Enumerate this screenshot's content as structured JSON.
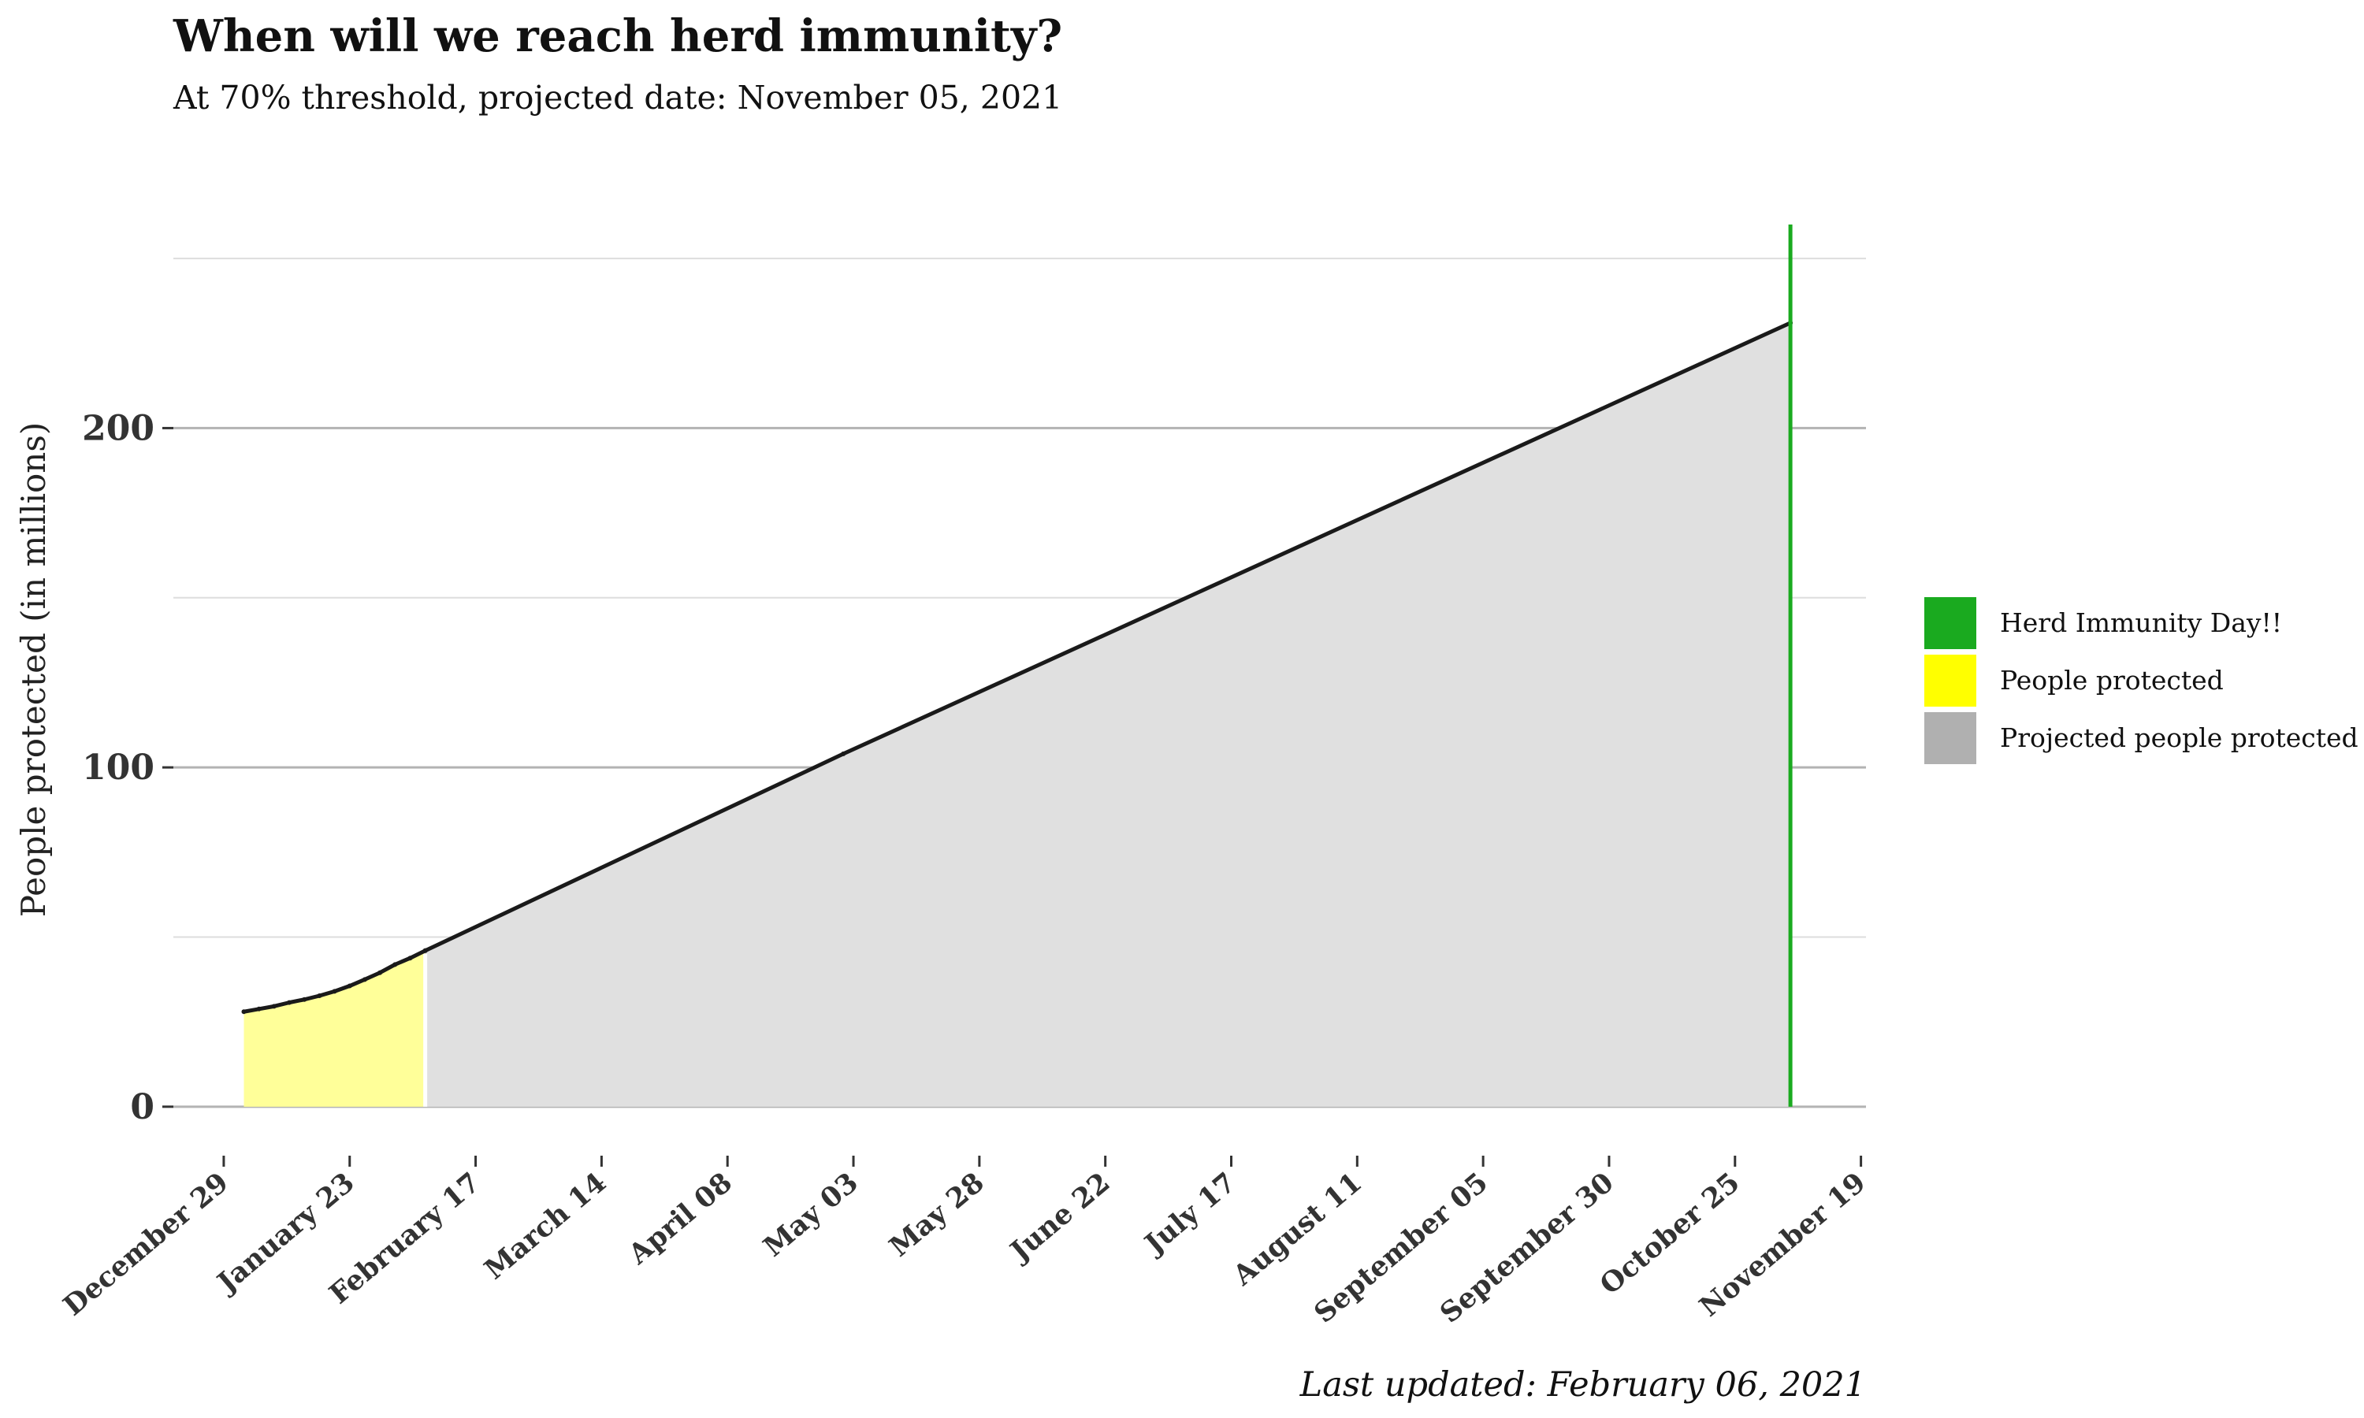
{
  "chart_data": {
    "type": "area",
    "title": "When will we reach herd immunity?",
    "subtitle": "At 70% threshold, projected date: November 05, 2021",
    "ylabel": "People protected (in millions)",
    "xlabel": "",
    "caption": "Last updated: February 06, 2021",
    "x_axis": {
      "type": "date",
      "range": [
        "2020-12-19",
        "2021-11-20"
      ],
      "ticks": [
        {
          "date": "2020-12-29",
          "label": "December 29"
        },
        {
          "date": "2021-01-23",
          "label": "January 23"
        },
        {
          "date": "2021-02-17",
          "label": "February 17"
        },
        {
          "date": "2021-03-14",
          "label": "March 14"
        },
        {
          "date": "2021-04-08",
          "label": "April 08"
        },
        {
          "date": "2021-05-03",
          "label": "May 03"
        },
        {
          "date": "2021-05-28",
          "label": "May 28"
        },
        {
          "date": "2021-06-22",
          "label": "June 22"
        },
        {
          "date": "2021-07-17",
          "label": "July 17"
        },
        {
          "date": "2021-08-11",
          "label": "August 11"
        },
        {
          "date": "2021-09-05",
          "label": "September 05"
        },
        {
          "date": "2021-09-30",
          "label": "September 30"
        },
        {
          "date": "2021-10-25",
          "label": "October 25"
        },
        {
          "date": "2021-11-19",
          "label": "November 19"
        }
      ]
    },
    "y_axis": {
      "range": [
        -7,
        260
      ],
      "major_ticks": [
        0,
        100,
        200
      ],
      "minor_gridlines": [
        50,
        150,
        250
      ]
    },
    "grid": true,
    "legend": {
      "position": "right",
      "items": [
        {
          "label": "Herd Immunity Day!!",
          "color": "#1aaa1f"
        },
        {
          "label": "People protected",
          "color": "#ffff00"
        },
        {
          "label": "Projected people protected",
          "color": "#b0b0b0"
        }
      ]
    },
    "series": [
      {
        "name": "People protected",
        "kind": "area",
        "fill": "#ffff99",
        "points": [
          {
            "x": "2021-01-02",
            "y": 28.0
          },
          {
            "x": "2021-01-05",
            "y": 28.8
          },
          {
            "x": "2021-01-08",
            "y": 29.6
          },
          {
            "x": "2021-01-11",
            "y": 30.7
          },
          {
            "x": "2021-01-14",
            "y": 31.6
          },
          {
            "x": "2021-01-17",
            "y": 32.7
          },
          {
            "x": "2021-01-20",
            "y": 34.0
          },
          {
            "x": "2021-01-23",
            "y": 35.6
          },
          {
            "x": "2021-01-26",
            "y": 37.5
          },
          {
            "x": "2021-01-29",
            "y": 39.5
          },
          {
            "x": "2021-02-01",
            "y": 41.9
          },
          {
            "x": "2021-02-04",
            "y": 43.8
          },
          {
            "x": "2021-02-07",
            "y": 46.0
          }
        ]
      },
      {
        "name": "Projected people protected",
        "kind": "area",
        "fill": "#e0e0e0",
        "points": [
          {
            "x": "2021-02-07",
            "y": 46.0
          },
          {
            "x": "2021-05-01",
            "y": 104.0
          },
          {
            "x": "2021-11-05",
            "y": 231.0
          }
        ]
      }
    ],
    "annotations": [
      {
        "type": "vline",
        "x": "2021-11-05",
        "label": "Herd Immunity Day!!",
        "color": "#1aaa1f"
      }
    ],
    "colors": {
      "yellow_fill": "#ffff99",
      "gray_fill": "#e0e0e0",
      "line": "#1a1a1a",
      "vline": "#1aaa1f",
      "major_grid": "#b3b3b3",
      "minor_grid": "#dddddd",
      "axis_text": "#333333"
    }
  }
}
